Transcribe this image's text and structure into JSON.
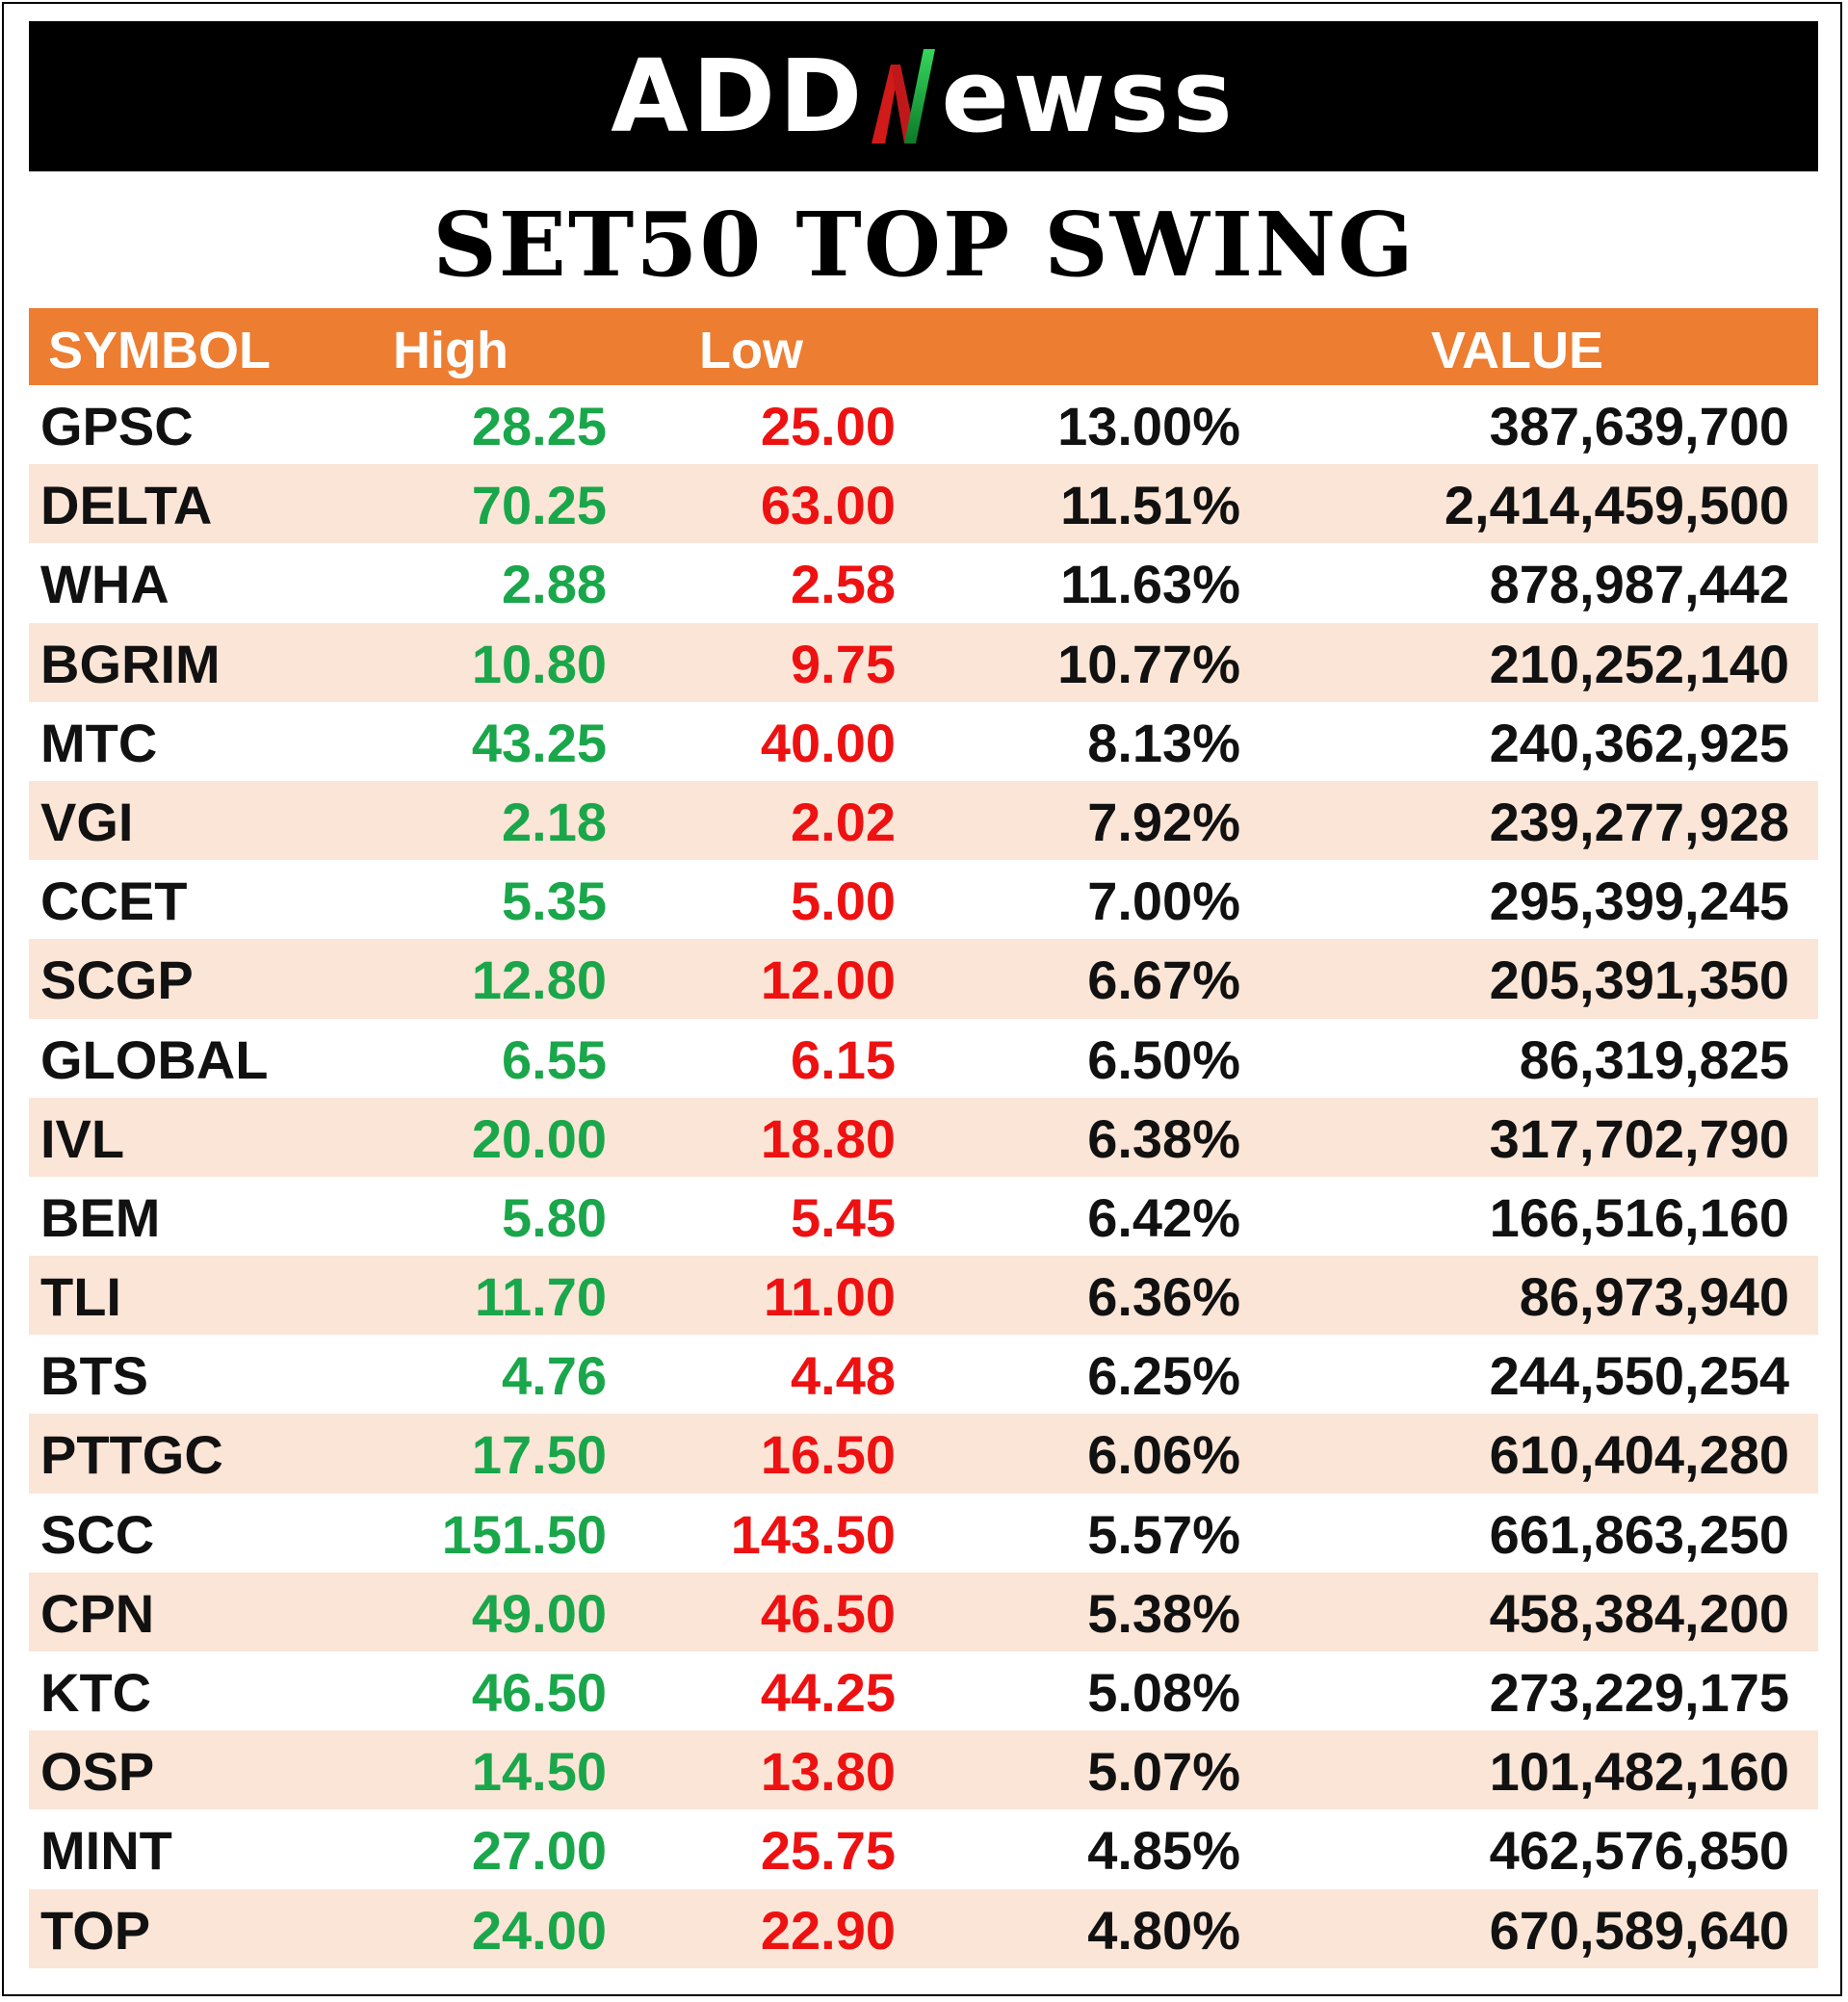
{
  "brand": {
    "left": "ADD",
    "right": "ewss"
  },
  "title": "SET50 TOP SWING",
  "colors": {
    "header_bg": "#ed7d31",
    "alt_row_bg": "#fbe5d6",
    "high": "#1aa64a",
    "low": "#ee1111",
    "banner_bg": "#000000"
  },
  "headers": {
    "symbol": "SYMBOL",
    "high": "High",
    "low": "Low",
    "pct": "",
    "value": "VALUE"
  },
  "rows": [
    {
      "symbol": "GPSC",
      "high": "28.25",
      "low": "25.00",
      "pct": "13.00%",
      "value": "387,639,700"
    },
    {
      "symbol": "DELTA",
      "high": "70.25",
      "low": "63.00",
      "pct": "11.51%",
      "value": "2,414,459,500"
    },
    {
      "symbol": "WHA",
      "high": "2.88",
      "low": "2.58",
      "pct": "11.63%",
      "value": "878,987,442"
    },
    {
      "symbol": "BGRIM",
      "high": "10.80",
      "low": "9.75",
      "pct": "10.77%",
      "value": "210,252,140"
    },
    {
      "symbol": "MTC",
      "high": "43.25",
      "low": "40.00",
      "pct": "8.13%",
      "value": "240,362,925"
    },
    {
      "symbol": "VGI",
      "high": "2.18",
      "low": "2.02",
      "pct": "7.92%",
      "value": "239,277,928"
    },
    {
      "symbol": "CCET",
      "high": "5.35",
      "low": "5.00",
      "pct": "7.00%",
      "value": "295,399,245"
    },
    {
      "symbol": "SCGP",
      "high": "12.80",
      "low": "12.00",
      "pct": "6.67%",
      "value": "205,391,350"
    },
    {
      "symbol": "GLOBAL",
      "high": "6.55",
      "low": "6.15",
      "pct": "6.50%",
      "value": "86,319,825"
    },
    {
      "symbol": "IVL",
      "high": "20.00",
      "low": "18.80",
      "pct": "6.38%",
      "value": "317,702,790"
    },
    {
      "symbol": "BEM",
      "high": "5.80",
      "low": "5.45",
      "pct": "6.42%",
      "value": "166,516,160"
    },
    {
      "symbol": "TLI",
      "high": "11.70",
      "low": "11.00",
      "pct": "6.36%",
      "value": "86,973,940"
    },
    {
      "symbol": "BTS",
      "high": "4.76",
      "low": "4.48",
      "pct": "6.25%",
      "value": "244,550,254"
    },
    {
      "symbol": "PTTGC",
      "high": "17.50",
      "low": "16.50",
      "pct": "6.06%",
      "value": "610,404,280"
    },
    {
      "symbol": "SCC",
      "high": "151.50",
      "low": "143.50",
      "pct": "5.57%",
      "value": "661,863,250"
    },
    {
      "symbol": "CPN",
      "high": "49.00",
      "low": "46.50",
      "pct": "5.38%",
      "value": "458,384,200"
    },
    {
      "symbol": "KTC",
      "high": "46.50",
      "low": "44.25",
      "pct": "5.08%",
      "value": "273,229,175"
    },
    {
      "symbol": "OSP",
      "high": "14.50",
      "low": "13.80",
      "pct": "5.07%",
      "value": "101,482,160"
    },
    {
      "symbol": "MINT",
      "high": "27.00",
      "low": "25.75",
      "pct": "4.85%",
      "value": "462,576,850"
    },
    {
      "symbol": "TOP",
      "high": "24.00",
      "low": "22.90",
      "pct": "4.80%",
      "value": "670,589,640"
    }
  ]
}
